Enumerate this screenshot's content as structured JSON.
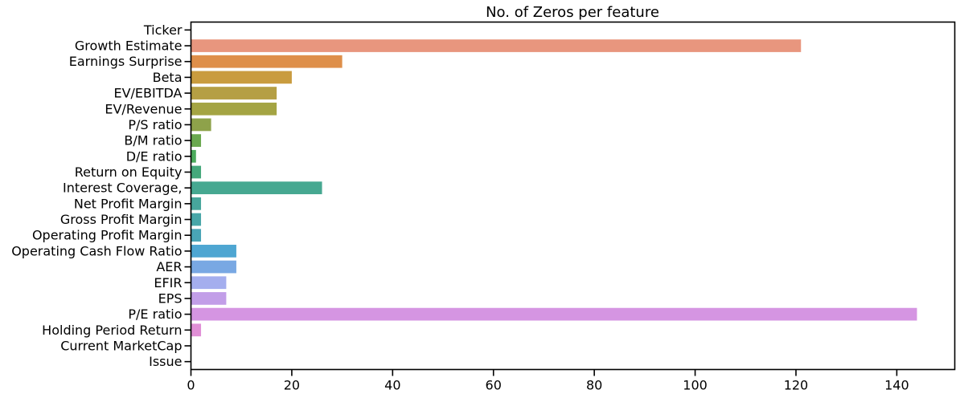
{
  "chart_data": {
    "type": "bar",
    "orientation": "horizontal",
    "title": "No. of Zeros per feature",
    "xlabel": "",
    "ylabel": "",
    "xlim": [
      0,
      151.5
    ],
    "x_ticks": [
      "0",
      "20",
      "40",
      "60",
      "80",
      "100",
      "120",
      "140"
    ],
    "grid": false,
    "categories": [
      "Ticker",
      "Growth Estimate",
      "Earnings Surprise",
      "Beta",
      "EV/EBITDA",
      "EV/Revenue",
      "P/S ratio",
      "B/M ratio",
      "D/E ratio",
      "Return on Equity",
      "Interest Coverage,",
      "Net Profit Margin",
      "Gross Profit Margin",
      "Operating Profit Margin",
      "Operating Cash Flow Ratio",
      "AER",
      "EFIR",
      "EPS",
      "P/E ratio",
      "Holding Period Return",
      "Current MarketCap",
      "Issue"
    ],
    "values": [
      0,
      121,
      30,
      20,
      17,
      17,
      4,
      2,
      1,
      2,
      26,
      2,
      2,
      2,
      9,
      9,
      7,
      7,
      144,
      2,
      0,
      0
    ],
    "colors": [
      "#f77189",
      "#e8967e",
      "#de8f4a",
      "#c99c3f",
      "#b59f44",
      "#a4a443",
      "#8ea24a",
      "#6aa84f",
      "#4cab5c",
      "#45a87b",
      "#46a891",
      "#47a69c",
      "#48a6a8",
      "#49a4b6",
      "#4ea6d2",
      "#79a8e3",
      "#a4aeee",
      "#c29ee8",
      "#d595e2",
      "#e08fd6",
      "#eb88c4",
      "#f37fab"
    ]
  }
}
